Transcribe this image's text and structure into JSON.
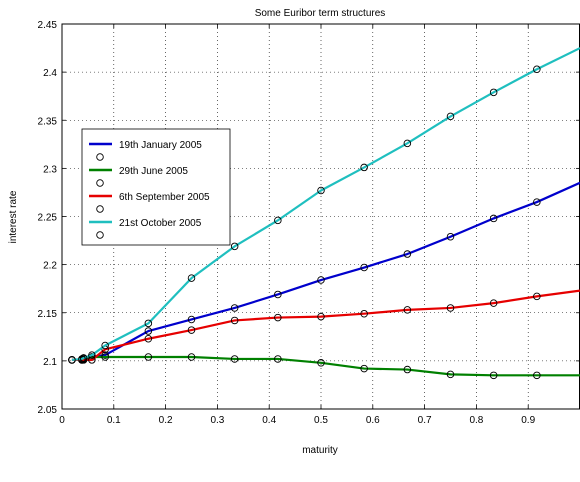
{
  "chart_data": {
    "type": "line",
    "title": "Some Euribor term structures",
    "xlabel": "maturity",
    "ylabel": "interest rate",
    "xlim": [
      0,
      1
    ],
    "ylim": [
      2.05,
      2.45
    ],
    "xticks": [
      0,
      0.1,
      0.2,
      0.3,
      0.4,
      0.5,
      0.6,
      0.7,
      0.8,
      0.9
    ],
    "xtick_labels": [
      "0",
      "0.1",
      "0.2",
      "0.3",
      "0.4",
      "0.5",
      "0.6",
      "0.7",
      "0.8",
      "0.9"
    ],
    "yticks": [
      2.05,
      2.1,
      2.15,
      2.2,
      2.25,
      2.3,
      2.35,
      2.4,
      2.45
    ],
    "ytick_labels": [
      "2.05",
      "2.1",
      "2.15",
      "2.2",
      "2.25",
      "2.3",
      "2.35",
      "2.4",
      "2.45"
    ],
    "grid": true,
    "legend_position": "upper-left",
    "marker": "open-circle",
    "series": [
      {
        "name": "19th January 2005",
        "color": "#0000cc",
        "x": [
          0.0192,
          0.0385,
          0.0417,
          0.0577,
          0.0833,
          0.1667,
          0.25,
          0.3333,
          0.4167,
          0.5,
          0.5833,
          0.6667,
          0.75,
          0.8333,
          0.9167,
          1.0
        ],
        "y": [
          2.101,
          2.101,
          2.102,
          2.104,
          2.106,
          2.131,
          2.143,
          2.155,
          2.169,
          2.184,
          2.197,
          2.211,
          2.229,
          2.248,
          2.265,
          2.285
        ]
      },
      {
        "name": "29th June 2005",
        "color": "#008000",
        "x": [
          0.0192,
          0.0385,
          0.0417,
          0.0577,
          0.0833,
          0.1667,
          0.25,
          0.3333,
          0.4167,
          0.5,
          0.5833,
          0.6667,
          0.75,
          0.8333,
          0.9167,
          1.0
        ],
        "y": [
          2.101,
          2.101,
          2.103,
          2.104,
          2.104,
          2.104,
          2.104,
          2.102,
          2.102,
          2.098,
          2.092,
          2.091,
          2.086,
          2.085,
          2.085,
          2.085
        ]
      },
      {
        "name": "6th September 2005",
        "color": "#e60000",
        "x": [
          0.0192,
          0.0385,
          0.0417,
          0.0577,
          0.0833,
          0.1667,
          0.25,
          0.3333,
          0.4167,
          0.5,
          0.5833,
          0.6667,
          0.75,
          0.8333,
          0.9167,
          1.0
        ],
        "y": [
          2.101,
          2.101,
          2.101,
          2.101,
          2.112,
          2.123,
          2.132,
          2.142,
          2.145,
          2.146,
          2.149,
          2.153,
          2.155,
          2.16,
          2.167,
          2.173
        ]
      },
      {
        "name": "21st October 2005",
        "color": "#1fbfbf",
        "x": [
          0.0192,
          0.0385,
          0.0417,
          0.0577,
          0.0833,
          0.1667,
          0.25,
          0.3333,
          0.4167,
          0.5,
          0.5833,
          0.6667,
          0.75,
          0.8333,
          0.9167,
          1.0
        ],
        "y": [
          2.101,
          2.102,
          2.103,
          2.106,
          2.116,
          2.139,
          2.186,
          2.219,
          2.246,
          2.277,
          2.301,
          2.326,
          2.354,
          2.379,
          2.403,
          2.425
        ]
      }
    ]
  }
}
